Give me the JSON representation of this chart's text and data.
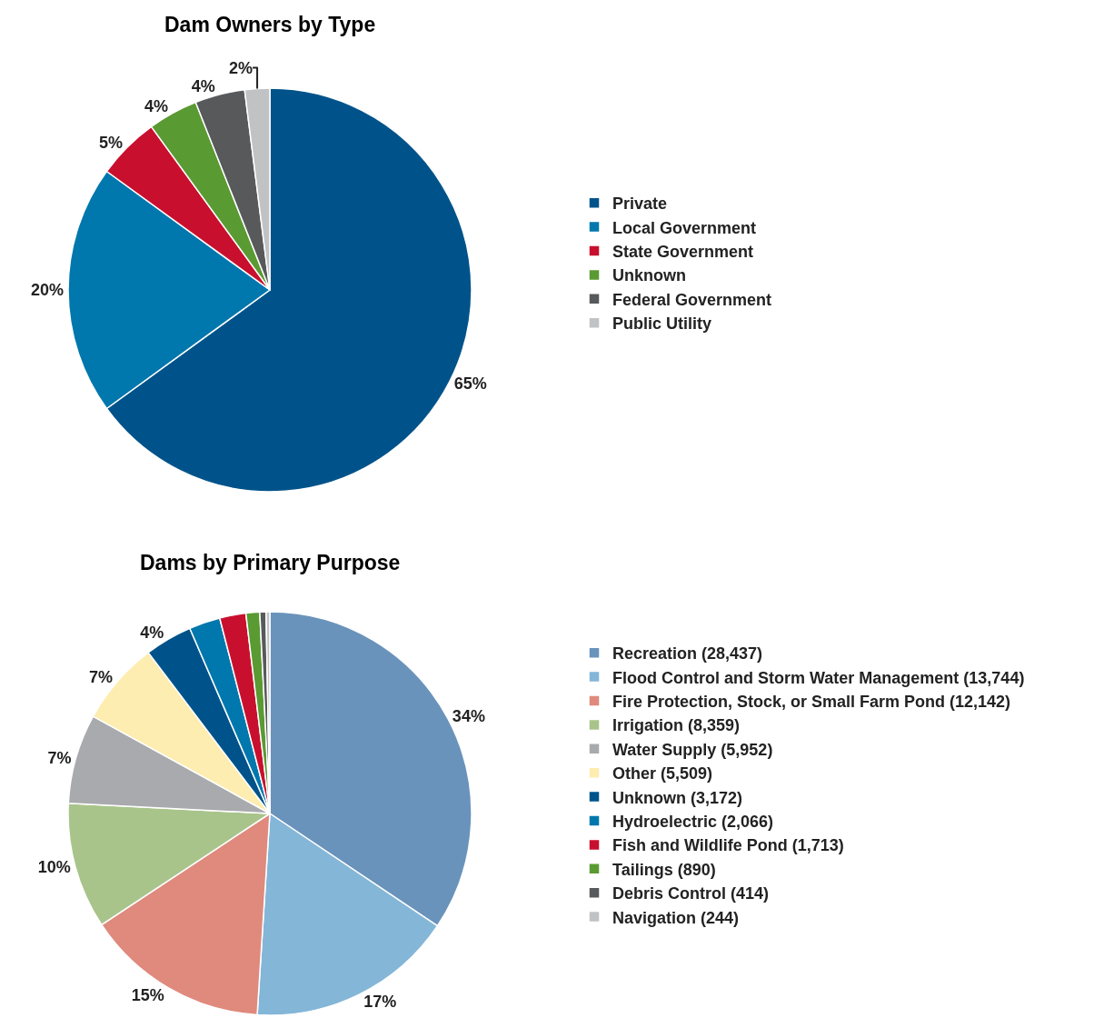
{
  "chart_data": [
    {
      "type": "pie",
      "title": "Dam Owners by Type",
      "legend": "right",
      "categories": [
        "Private",
        "Local Government",
        "State Government",
        "Unknown",
        "Federal Government",
        "Public Utility"
      ],
      "values": [
        65,
        20,
        5,
        4,
        4,
        2
      ],
      "value_labels": [
        "65%",
        "20%",
        "5%",
        "4%",
        "4%",
        "2%"
      ],
      "colors": [
        "#00538a",
        "#0077ad",
        "#c8102e",
        "#5a9a32",
        "#58595b",
        "#c1c2c4"
      ]
    },
    {
      "type": "pie",
      "title": "Dams by Primary Purpose",
      "legend": "right",
      "categories": [
        "Recreation (28,437)",
        "Flood Control and Storm Water Management (13,744)",
        "Fire Protection, Stock, or Small Farm Pond (12,142)",
        "Irrigation (8,359)",
        "Water Supply (5,952)",
        "Other (5,509)",
        "Unknown (3,172)",
        "Hydroelectric (2,066)",
        "Fish and Wildlife Pond (1,713)",
        "Tailings (890)",
        "Debris Control (414)",
        "Navigation (244)"
      ],
      "values": [
        34.4,
        16.6,
        14.7,
        10.1,
        7.2,
        6.7,
        3.8,
        2.5,
        2.1,
        1.1,
        0.5,
        0.3
      ],
      "value_labels": [
        "34%",
        "17%",
        "15%",
        "10%",
        "7%",
        "7%",
        "4%",
        null,
        null,
        null,
        null,
        null
      ],
      "colors": [
        "#6a93bc",
        "#84b6d8",
        "#df8a7d",
        "#a8c48b",
        "#a9aaad",
        "#fdedb0",
        "#00538a",
        "#0077ad",
        "#c8102e",
        "#5a9a32",
        "#58595b",
        "#c1c2c4"
      ]
    }
  ]
}
